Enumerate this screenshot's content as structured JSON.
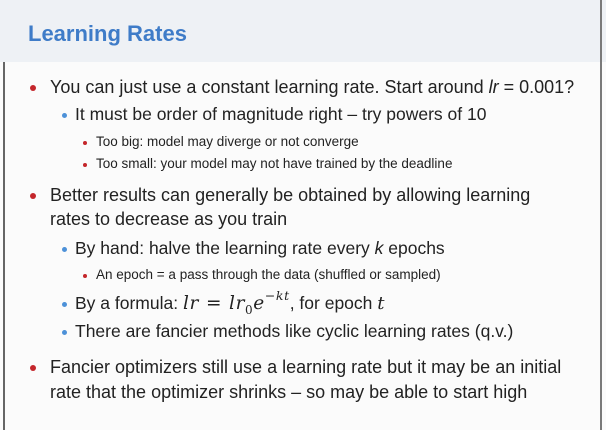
{
  "slide": {
    "title": "Learning Rates",
    "colors": {
      "title": "#3f7cc8",
      "bullet_level1": "#c4262b",
      "bullet_level2": "#4d91d8",
      "bullet_level3": "#c4262b",
      "header_bg": "#eef1f5",
      "text": "#222222"
    },
    "bullets": [
      {
        "text_before": "You can just use a constant learning rate. Start around ",
        "var": "lr",
        "text_after": " = 0.001?",
        "children": [
          {
            "text": "It must be order of magnitude right – try powers of 10",
            "children": [
              {
                "text": "Too big: model may diverge or not converge"
              },
              {
                "text": "Too small: your model may not have trained by the deadline"
              }
            ]
          }
        ]
      },
      {
        "lines": [
          "Better results can generally be obtained by allowing learning",
          "rates to decrease as you train"
        ],
        "children": [
          {
            "text_before": "By hand: halve the learning rate every ",
            "var": "k",
            "text_after": " epochs",
            "children": [
              {
                "text": "An epoch = a pass through the data (shuffled or sampled)"
              }
            ]
          },
          {
            "text_before": "By a formula: ",
            "formula": {
              "lhs": "lr",
              "equals": "=",
              "rhs": "lr",
              "subscript": "0",
              "base": "e",
              "exponent": "−kt"
            },
            "text_after": ", for epoch ",
            "var": "t"
          },
          {
            "text": "There are fancier methods like cyclic learning rates (q.v.)"
          }
        ]
      },
      {
        "lines": [
          "Fancier optimizers still use a learning rate but it may be an initial",
          "rate that the optimizer shrinks – so may be able to start high"
        ]
      }
    ]
  }
}
